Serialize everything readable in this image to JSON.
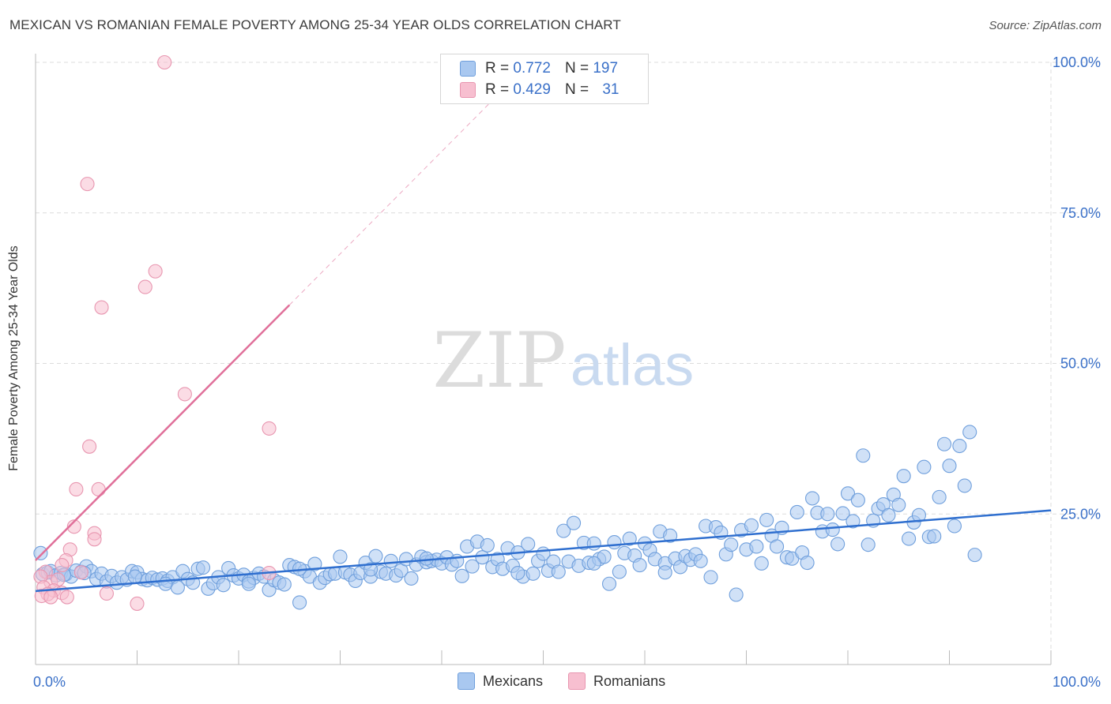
{
  "header": {
    "title": "MEXICAN VS ROMANIAN FEMALE POVERTY AMONG 25-34 YEAR OLDS CORRELATION CHART",
    "source": "Source: ZipAtlas.com"
  },
  "watermark": {
    "zip": "ZIP",
    "atlas": "atlas"
  },
  "legend": {
    "rows": [
      {
        "r_label": "R =",
        "r_value": "0.772",
        "n_label": "N =",
        "n_value": "197"
      },
      {
        "r_label": "R =",
        "r_value": "0.429",
        "n_label": "N =",
        "n_value": "31"
      }
    ]
  },
  "colors": {
    "mexicans_fill": "#a9c8f0",
    "mexicans_stroke": "#6f9fdc",
    "mexicans_line": "#2f6fcf",
    "romanians_fill": "#f7bfd0",
    "romanians_stroke": "#e896b0",
    "romanians_line": "#e0709a",
    "tick_label": "#3a70c8",
    "grid": "#dcdcdc"
  },
  "chart_data": {
    "type": "scatter",
    "title": "MEXICAN VS ROMANIAN FEMALE POVERTY AMONG 25-34 YEAR OLDS CORRELATION CHART",
    "xlabel": "",
    "ylabel": "Female Poverty Among 25-34 Year Olds",
    "xlim": [
      0,
      100
    ],
    "ylim": [
      0,
      100
    ],
    "x_tick_labels": [
      "0.0%",
      "100.0%"
    ],
    "y_tick_labels": [
      "100.0%",
      "75.0%",
      "50.0%",
      "25.0%"
    ],
    "y_tick_values": [
      100,
      75,
      50,
      25
    ],
    "grid": true,
    "legend_position": "bottom",
    "series": [
      {
        "name": "Mexicans",
        "r": 0.772,
        "n": 197,
        "trend": {
          "x": [
            0,
            100
          ],
          "y": [
            12.2,
            25.6
          ]
        },
        "points": [
          [
            0.5,
            18.5
          ],
          [
            0.7,
            15
          ],
          [
            1.2,
            15.3
          ],
          [
            1.5,
            15.5
          ],
          [
            2,
            14.8
          ],
          [
            2.5,
            15.2
          ],
          [
            3,
            15
          ],
          [
            3.5,
            14.6
          ],
          [
            4,
            15.6
          ],
          [
            4.5,
            15.4
          ],
          [
            5,
            16.3
          ],
          [
            5.5,
            15.5
          ],
          [
            6,
            14.2
          ],
          [
            6.5,
            15.1
          ],
          [
            7,
            13.8
          ],
          [
            7.5,
            14.7
          ],
          [
            8,
            13.6
          ],
          [
            8.5,
            14.5
          ],
          [
            9,
            14.1
          ],
          [
            9.5,
            15.5
          ],
          [
            10,
            15.3
          ],
          [
            10.5,
            14.2
          ],
          [
            11,
            14
          ],
          [
            11.5,
            14.4
          ],
          [
            12,
            14.1
          ],
          [
            12.5,
            14.3
          ],
          [
            13,
            13.9
          ],
          [
            13.5,
            14.5
          ],
          [
            14,
            12.8
          ],
          [
            14.5,
            15.5
          ],
          [
            15,
            14.2
          ],
          [
            15.5,
            13.6
          ],
          [
            16,
            15.9
          ],
          [
            16.5,
            16.1
          ],
          [
            17,
            12.6
          ],
          [
            17.5,
            13.5
          ],
          [
            18,
            14.5
          ],
          [
            18.5,
            13.2
          ],
          [
            19,
            16
          ],
          [
            19.5,
            14.8
          ],
          [
            20,
            14.3
          ],
          [
            20.5,
            14.9
          ],
          [
            21,
            13.8
          ],
          [
            21.5,
            14.4
          ],
          [
            22,
            15.1
          ],
          [
            22.5,
            14.6
          ],
          [
            23,
            12.4
          ],
          [
            23.5,
            14
          ],
          [
            24,
            13.6
          ],
          [
            24.5,
            13.3
          ],
          [
            25,
            16.5
          ],
          [
            25.5,
            16.2
          ],
          [
            26,
            10.3
          ],
          [
            26.5,
            15.5
          ],
          [
            27,
            14.6
          ],
          [
            27.5,
            16.7
          ],
          [
            28,
            13.6
          ],
          [
            28.5,
            14.4
          ],
          [
            29,
            15
          ],
          [
            29.5,
            15.1
          ],
          [
            30,
            17.9
          ],
          [
            30.5,
            15.3
          ],
          [
            31,
            14.9
          ],
          [
            31.5,
            13.9
          ],
          [
            32,
            15.2
          ],
          [
            32.5,
            16.9
          ],
          [
            33,
            14.6
          ],
          [
            33.5,
            18
          ],
          [
            34,
            15.4
          ],
          [
            34.5,
            15.1
          ],
          [
            35,
            17.2
          ],
          [
            35.5,
            14.8
          ],
          [
            36,
            15.6
          ],
          [
            36.5,
            17.5
          ],
          [
            37,
            14.3
          ],
          [
            37.5,
            16.6
          ],
          [
            38,
            17.9
          ],
          [
            38.5,
            17
          ],
          [
            39,
            17.2
          ],
          [
            39.5,
            17.4
          ],
          [
            40,
            16.8
          ],
          [
            40.5,
            17.8
          ],
          [
            41,
            16.6
          ],
          [
            41.5,
            17.2
          ],
          [
            42,
            14.7
          ],
          [
            42.5,
            19.6
          ],
          [
            43,
            16.3
          ],
          [
            43.5,
            20.4
          ],
          [
            44,
            17.8
          ],
          [
            44.5,
            19.8
          ],
          [
            45,
            16.2
          ],
          [
            45.5,
            17.5
          ],
          [
            46,
            15.9
          ],
          [
            46.5,
            19.3
          ],
          [
            47,
            16.4
          ],
          [
            47.5,
            18.6
          ],
          [
            48,
            14.6
          ],
          [
            48.5,
            20
          ],
          [
            49,
            15.1
          ],
          [
            49.5,
            17.2
          ],
          [
            50,
            18.4
          ],
          [
            50.5,
            15.6
          ],
          [
            51,
            17.1
          ],
          [
            51.5,
            15.4
          ],
          [
            52,
            22.2
          ],
          [
            52.5,
            17.1
          ],
          [
            53,
            23.5
          ],
          [
            53.5,
            16.4
          ],
          [
            54,
            20.2
          ],
          [
            54.5,
            16.9
          ],
          [
            55,
            20.1
          ],
          [
            55.5,
            17.5
          ],
          [
            56,
            17.9
          ],
          [
            56.5,
            13.4
          ],
          [
            57,
            20.3
          ],
          [
            57.5,
            15.4
          ],
          [
            58,
            18.5
          ],
          [
            58.5,
            20.9
          ],
          [
            59,
            18.1
          ],
          [
            59.5,
            16.5
          ],
          [
            60,
            20.1
          ],
          [
            60.5,
            19
          ],
          [
            61,
            17.5
          ],
          [
            61.5,
            22.1
          ],
          [
            62,
            16.8
          ],
          [
            62.5,
            21.4
          ],
          [
            63,
            17.6
          ],
          [
            63.5,
            16.2
          ],
          [
            64,
            18
          ],
          [
            64.5,
            17.4
          ],
          [
            65,
            18.3
          ],
          [
            65.5,
            17.2
          ],
          [
            66,
            23
          ],
          [
            66.5,
            14.5
          ],
          [
            67,
            22.8
          ],
          [
            67.5,
            21.9
          ],
          [
            68,
            18.3
          ],
          [
            68.5,
            19.9
          ],
          [
            69,
            11.6
          ],
          [
            69.5,
            22.3
          ],
          [
            70,
            19.1
          ],
          [
            70.5,
            23.1
          ],
          [
            71,
            19.6
          ],
          [
            71.5,
            16.8
          ],
          [
            72,
            24
          ],
          [
            72.5,
            21.4
          ],
          [
            73,
            19.6
          ],
          [
            73.5,
            22.7
          ],
          [
            74,
            17.8
          ],
          [
            74.5,
            17.6
          ],
          [
            75,
            25.3
          ],
          [
            75.5,
            18.6
          ],
          [
            76,
            16.9
          ],
          [
            76.5,
            27.6
          ],
          [
            77,
            25.2
          ],
          [
            77.5,
            22.1
          ],
          [
            78,
            25
          ],
          [
            78.5,
            22.4
          ],
          [
            79,
            20
          ],
          [
            79.5,
            25.1
          ],
          [
            80,
            28.4
          ],
          [
            80.5,
            23.8
          ],
          [
            81,
            27.3
          ],
          [
            81.5,
            34.7
          ],
          [
            82,
            19.9
          ],
          [
            82.5,
            23.9
          ],
          [
            83,
            25.9
          ],
          [
            83.5,
            26.6
          ],
          [
            84,
            24.8
          ],
          [
            84.5,
            28.2
          ],
          [
            85,
            26.5
          ],
          [
            85.5,
            31.3
          ],
          [
            86,
            20.9
          ],
          [
            86.5,
            23.6
          ],
          [
            87,
            24.8
          ],
          [
            87.5,
            32.8
          ],
          [
            88,
            21.2
          ],
          [
            88.5,
            21.3
          ],
          [
            89,
            27.8
          ],
          [
            89.5,
            36.6
          ],
          [
            90,
            33
          ],
          [
            90.5,
            23
          ],
          [
            91,
            36.3
          ],
          [
            91.5,
            29.7
          ],
          [
            92,
            38.6
          ],
          [
            92.5,
            18.2
          ],
          [
            38.5,
            17.6
          ],
          [
            47.5,
            15.2
          ],
          [
            55,
            16.8
          ],
          [
            62,
            15.3
          ],
          [
            26,
            15.9
          ],
          [
            21,
            13.4
          ],
          [
            33,
            15.8
          ],
          [
            12.8,
            13.4
          ],
          [
            9.8,
            14.6
          ],
          [
            4.8,
            15.2
          ],
          [
            2.8,
            14.9
          ]
        ]
      },
      {
        "name": "Romanians",
        "r": 0.429,
        "n": 31,
        "trend": {
          "x": [
            0,
            25
          ],
          "y": [
            17.3,
            59.7
          ]
        },
        "trend_extension": {
          "x": [
            25,
            45
          ],
          "y": [
            59.7,
            93.7
          ]
        },
        "points": [
          [
            12.7,
            100
          ],
          [
            5.1,
            79.8
          ],
          [
            11.8,
            65.3
          ],
          [
            10.8,
            62.7
          ],
          [
            6.5,
            59.3
          ],
          [
            14.7,
            44.9
          ],
          [
            23,
            39.2
          ],
          [
            5.3,
            36.2
          ],
          [
            4,
            29.1
          ],
          [
            6.2,
            29.1
          ],
          [
            3.8,
            22.9
          ],
          [
            5.8,
            21.8
          ],
          [
            5.8,
            20.8
          ],
          [
            3.4,
            19.1
          ],
          [
            3,
            17.3
          ],
          [
            2.6,
            16.5
          ],
          [
            23,
            15.2
          ],
          [
            4.5,
            15.3
          ],
          [
            1,
            15.4
          ],
          [
            1.5,
            13.7
          ],
          [
            2.2,
            14.1
          ],
          [
            0.5,
            14.6
          ],
          [
            0.8,
            12.8
          ],
          [
            1.8,
            12.3
          ],
          [
            2.6,
            11.9
          ],
          [
            1.2,
            11.7
          ],
          [
            0.6,
            11.4
          ],
          [
            1.5,
            11.2
          ],
          [
            3.1,
            11.2
          ],
          [
            7,
            11.8
          ],
          [
            10,
            10.1
          ]
        ]
      }
    ]
  },
  "bottom_legend": {
    "items": [
      "Mexicans",
      "Romanians"
    ]
  }
}
